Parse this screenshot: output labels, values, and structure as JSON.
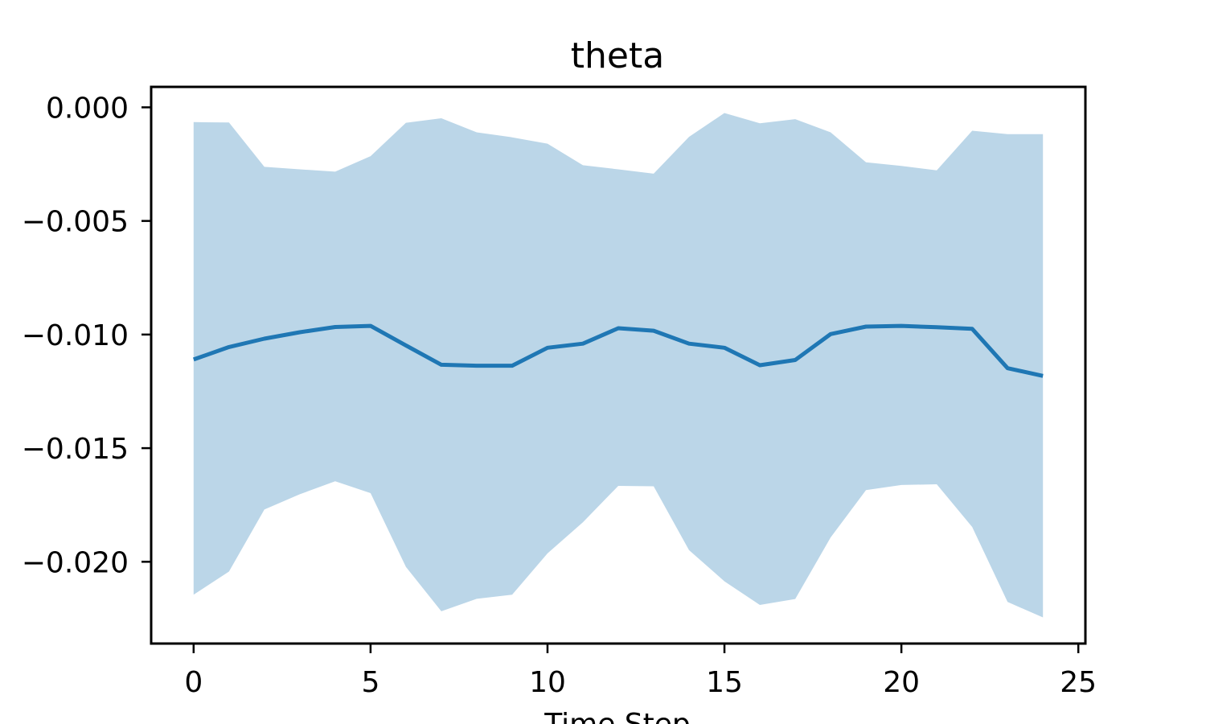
{
  "chart_data": {
    "type": "line",
    "title": "theta",
    "xlabel": "Time Step",
    "ylabel": "",
    "xlim": [
      -1.2,
      25.2
    ],
    "ylim": [
      -0.0236,
      0.0009
    ],
    "x_ticks": [
      0,
      5,
      10,
      15,
      20,
      25
    ],
    "x_tick_labels": [
      "0",
      "5",
      "10",
      "15",
      "20",
      "25"
    ],
    "y_ticks": [
      0,
      -0.005,
      -0.01,
      -0.015,
      -0.02
    ],
    "y_tick_labels": [
      "0.000",
      "−0.005",
      "−0.010",
      "−0.015",
      "−0.020"
    ],
    "grid": false,
    "legend": "none",
    "series": [
      {
        "x": [
          0,
          1,
          2,
          3,
          4,
          5,
          6,
          7,
          8,
          9,
          10,
          11,
          12,
          13,
          14,
          15,
          16,
          17,
          18,
          19,
          20,
          21,
          22,
          23,
          24
        ],
        "values": [
          -0.0111,
          -0.01055,
          -0.01018,
          -0.0099,
          -0.00967,
          -0.00962,
          -0.01048,
          -0.01133,
          -0.01137,
          -0.01137,
          -0.01058,
          -0.0104,
          -0.00972,
          -0.00983,
          -0.0104,
          -0.01058,
          -0.01135,
          -0.01112,
          -0.00998,
          -0.00965,
          -0.00962,
          -0.00968,
          -0.00975,
          -0.01148,
          -0.01182
        ],
        "lower": [
          -0.02145,
          -0.02043,
          -0.0177,
          -0.01703,
          -0.01646,
          -0.01698,
          -0.02023,
          -0.02218,
          -0.02163,
          -0.02145,
          -0.01963,
          -0.01826,
          -0.01666,
          -0.01668,
          -0.01949,
          -0.02086,
          -0.0219,
          -0.02164,
          -0.01893,
          -0.01685,
          -0.01662,
          -0.01659,
          -0.01847,
          -0.02177,
          -0.02245
        ],
        "upper": [
          -0.00065,
          -0.00067,
          -0.00262,
          -0.00273,
          -0.00283,
          -0.00215,
          -0.00068,
          -0.00048,
          -0.0011,
          -0.00132,
          -0.0016,
          -0.00255,
          -0.00273,
          -0.00292,
          -0.0013,
          -0.00025,
          -0.0007,
          -0.00052,
          -0.0011,
          -0.00242,
          -0.00258,
          -0.00277,
          -0.00103,
          -0.00118,
          -0.00118
        ],
        "color": "#1f77b4",
        "band_color": "#1f77b4",
        "band_opacity": 0.3
      }
    ]
  }
}
